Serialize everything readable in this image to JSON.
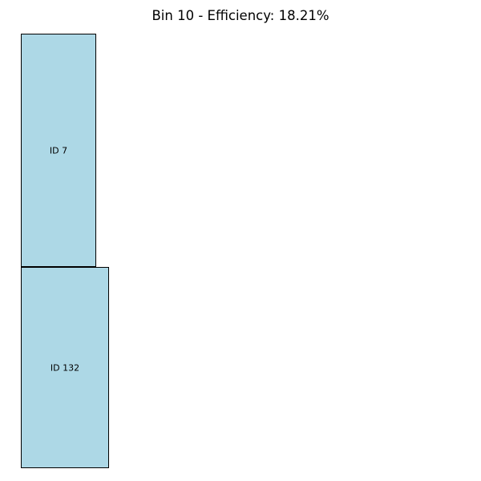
{
  "title": "Bin 10 - Efficiency: 18.21%",
  "colors": {
    "item_fill": "#add8e6",
    "item_border": "#000000",
    "background": "#ffffff"
  },
  "items": [
    {
      "label": "ID 7"
    },
    {
      "label": "ID 132"
    }
  ]
}
